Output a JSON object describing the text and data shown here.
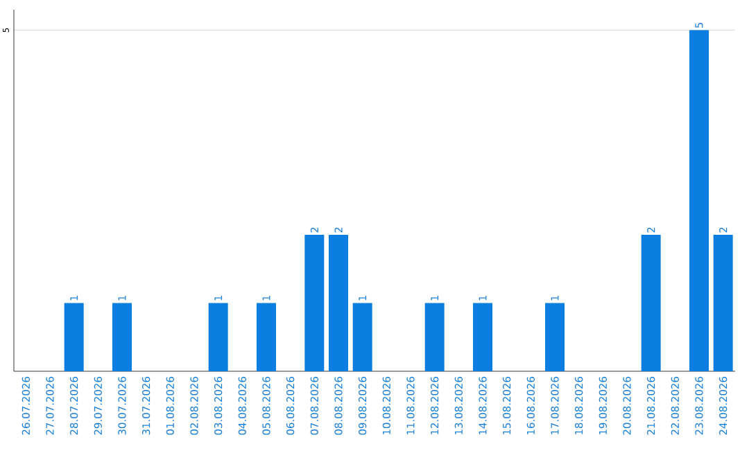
{
  "chart_data": {
    "type": "bar",
    "categories": [
      "26.07.2026",
      "27.07.2026",
      "28.07.2026",
      "29.07.2026",
      "30.07.2026",
      "31.07.2026",
      "01.08.2026",
      "02.08.2026",
      "03.08.2026",
      "04.08.2026",
      "05.08.2026",
      "06.08.2026",
      "07.08.2026",
      "08.08.2026",
      "09.08.2026",
      "10.08.2026",
      "11.08.2026",
      "12.08.2026",
      "13.08.2026",
      "14.08.2026",
      "15.08.2026",
      "16.08.2026",
      "17.08.2026",
      "18.08.2026",
      "19.08.2026",
      "20.08.2026",
      "21.08.2026",
      "22.08.2026",
      "23.08.2026",
      "24.08.2026"
    ],
    "values": [
      0,
      0,
      1,
      0,
      1,
      0,
      0,
      0,
      1,
      0,
      1,
      0,
      2,
      2,
      1,
      0,
      0,
      1,
      0,
      1,
      0,
      0,
      1,
      0,
      0,
      0,
      2,
      0,
      5,
      2
    ],
    "value_labels": [
      null,
      null,
      "1",
      null,
      "1",
      null,
      null,
      null,
      "1",
      null,
      "1",
      null,
      "2",
      "2",
      "1",
      null,
      null,
      "1",
      null,
      "1",
      null,
      null,
      "1",
      null,
      null,
      null,
      "2",
      null,
      "5",
      "2"
    ],
    "color": "#0a7ee0",
    "ylim": [
      0,
      5.3
    ],
    "yticks": [
      5
    ],
    "grid": "y"
  }
}
